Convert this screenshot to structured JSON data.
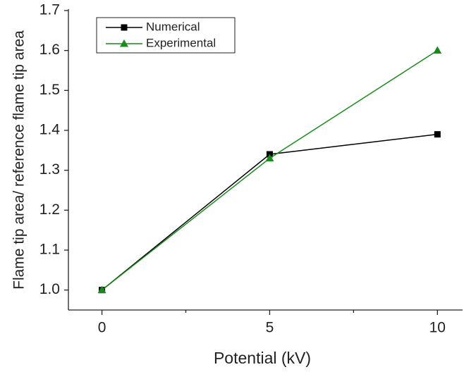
{
  "chart_data": {
    "type": "line",
    "xlabel": "Potential (kV)",
    "ylabel": "Flame tip area/ reference flame tip area",
    "x": [
      0,
      5,
      10
    ],
    "series": [
      {
        "name": "Numerical",
        "color": "#000000",
        "marker": "square",
        "values": [
          1.0,
          1.34,
          1.39
        ]
      },
      {
        "name": "Experimental",
        "color": "#1a8a1a",
        "marker": "triangle",
        "values": [
          1.0,
          1.33,
          1.6
        ]
      }
    ],
    "xlim": [
      -1,
      10.75
    ],
    "xticks": [
      0,
      5,
      10
    ],
    "xminorticks": [
      2.5,
      7.5
    ],
    "ylim": [
      0.95,
      1.7
    ],
    "yticks": [
      {
        "value": 1,
        "label": "1.0"
      },
      1.1,
      1.2,
      1.3,
      1.4,
      1.5,
      1.6,
      1.7
    ],
    "legend": "upper left"
  }
}
